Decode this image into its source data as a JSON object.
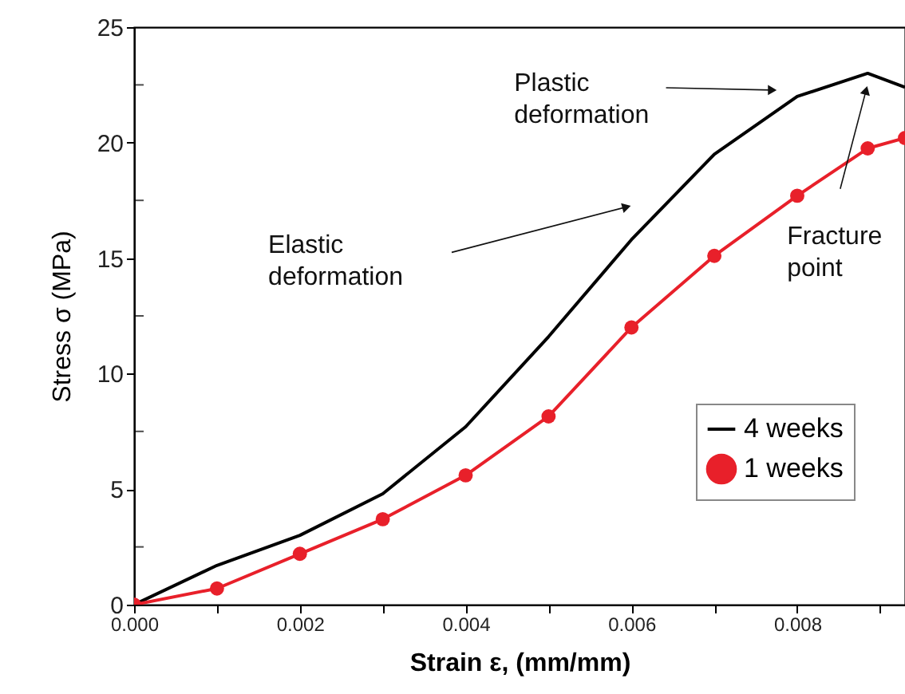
{
  "chart_data": {
    "type": "line",
    "xlabel": "Strain ε,  (mm/mm)",
    "ylabel": "Stress σ (MPa)",
    "xlim": [
      0,
      0.0093
    ],
    "ylim": [
      0,
      25
    ],
    "xticks": [
      {
        "value": 0,
        "label": "0.000"
      },
      {
        "value": 0.001,
        "label": null
      },
      {
        "value": 0.002,
        "label": "0.002"
      },
      {
        "value": 0.003,
        "label": null
      },
      {
        "value": 0.004,
        "label": "0.004"
      },
      {
        "value": 0.005,
        "label": null
      },
      {
        "value": 0.006,
        "label": "0.006"
      },
      {
        "value": 0.007,
        "label": null
      },
      {
        "value": 0.008,
        "label": "0.008"
      },
      {
        "value": 0.009,
        "label": null
      }
    ],
    "yticks": [
      0,
      {
        "value": 2.5,
        "label": null
      },
      5,
      {
        "value": 7.5,
        "label": null
      },
      10,
      {
        "value": 12.5,
        "label": null
      },
      15,
      {
        "value": 17.5,
        "label": null
      },
      20,
      {
        "value": 22.5,
        "label": null
      },
      25
    ],
    "series": [
      {
        "name": "4 weeks",
        "color": "#000000",
        "marker": "none",
        "x": [
          0,
          0.001,
          0.002,
          0.003,
          0.004,
          0.005,
          0.006,
          0.007,
          0.008,
          0.00885,
          0.0093
        ],
        "values": [
          0,
          1.7,
          3.0,
          4.8,
          7.7,
          11.6,
          15.8,
          19.5,
          22.0,
          23.0,
          22.4
        ]
      },
      {
        "name": "1 weeks",
        "color": "#e8202a",
        "marker": "circle",
        "x": [
          0,
          0.001,
          0.002,
          0.003,
          0.004,
          0.005,
          0.006,
          0.007,
          0.008,
          0.00885,
          0.0093
        ],
        "values": [
          0,
          0.7,
          2.2,
          3.7,
          5.6,
          8.15,
          12.0,
          15.1,
          17.7,
          19.75,
          20.2
        ]
      }
    ],
    "annotations": [
      "Elastic\ndeformation",
      "Plastic\ndeformation",
      "Fracture\npoint"
    ],
    "legend": "bottom right",
    "grid": false
  }
}
